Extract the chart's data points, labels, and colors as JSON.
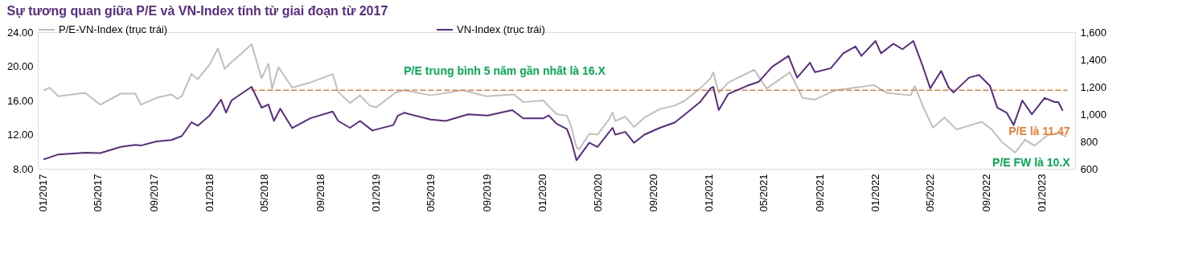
{
  "chart_data": {
    "type": "line",
    "title": "Sự tương quan giữa P/E và VN-Index tính từ giai đoạn từ 2017",
    "xlim": [
      "2016-12-20",
      "2023-03-15"
    ],
    "xticks": [
      {
        "value": "2017-01-01",
        "label": "01/2017"
      },
      {
        "value": "2017-05-01",
        "label": "05/2017"
      },
      {
        "value": "2017-09-01",
        "label": "09/2017"
      },
      {
        "value": "2018-01-01",
        "label": "01/2018"
      },
      {
        "value": "2018-05-01",
        "label": "05/2018"
      },
      {
        "value": "2018-09-01",
        "label": "09/2018"
      },
      {
        "value": "2019-01-01",
        "label": "01/2019"
      },
      {
        "value": "2019-05-01",
        "label": "05/2019"
      },
      {
        "value": "2019-09-01",
        "label": "09/2019"
      },
      {
        "value": "2020-01-01",
        "label": "01/2020"
      },
      {
        "value": "2020-05-01",
        "label": "05/2020"
      },
      {
        "value": "2020-09-01",
        "label": "09/2020"
      },
      {
        "value": "2021-01-01",
        "label": "01/2021"
      },
      {
        "value": "2021-05-01",
        "label": "05/2021"
      },
      {
        "value": "2021-09-01",
        "label": "09/2021"
      },
      {
        "value": "2022-01-01",
        "label": "01/2022"
      },
      {
        "value": "2022-05-01",
        "label": "05/2022"
      },
      {
        "value": "2022-09-01",
        "label": "09/2022"
      },
      {
        "value": "2023-01-01",
        "label": "01/2023"
      }
    ],
    "ylim": [
      8,
      24
    ],
    "yticks": [
      {
        "value": 8,
        "label": "8.00"
      },
      {
        "value": 12,
        "label": "12.00"
      },
      {
        "value": 16,
        "label": "16.00"
      },
      {
        "value": 20,
        "label": "20.00"
      },
      {
        "value": 24,
        "label": "24.00"
      }
    ],
    "y2lim": [
      600,
      1600
    ],
    "y2ticks": [
      {
        "value": 600,
        "label": "600"
      },
      {
        "value": 800,
        "label": "800"
      },
      {
        "value": 1000,
        "label": "1,000"
      },
      {
        "value": 1200,
        "label": "1,200"
      },
      {
        "value": 1400,
        "label": "1,400"
      },
      {
        "value": 1600,
        "label": "1,600"
      }
    ],
    "legend": "top",
    "series": [
      {
        "name": "P/E-VN-Index (trục trái)",
        "color": "#bfbfbf",
        "axis": "y",
        "x": [
          "2017-01-03",
          "2017-01-15",
          "2017-02-03",
          "2017-04-03",
          "2017-05-06",
          "2017-06-20",
          "2017-07-22",
          "2017-08-03",
          "2017-09-06",
          "2017-10-09",
          "2017-10-22",
          "2017-11-01",
          "2017-11-22",
          "2017-12-06",
          "2018-01-01",
          "2018-01-19",
          "2018-02-03",
          "2018-02-18",
          "2018-03-12",
          "2018-04-03",
          "2018-04-25",
          "2018-05-10",
          "2018-05-18",
          "2018-06-01",
          "2018-07-01",
          "2018-08-10",
          "2018-09-28",
          "2018-10-10",
          "2018-11-05",
          "2018-11-27",
          "2018-12-18",
          "2019-01-02",
          "2019-02-12",
          "2019-03-04",
          "2019-05-01",
          "2019-07-10",
          "2019-08-31",
          "2019-10-31",
          "2019-11-20",
          "2020-01-03",
          "2020-02-01",
          "2020-02-24",
          "2020-03-04",
          "2020-03-16",
          "2020-03-22",
          "2020-04-13",
          "2020-05-01",
          "2020-05-25",
          "2020-06-03",
          "2020-06-09",
          "2020-07-01",
          "2020-07-20",
          "2020-08-12",
          "2020-09-15",
          "2020-10-18",
          "2020-11-09",
          "2020-12-12",
          "2021-01-04",
          "2021-01-10",
          "2021-01-22",
          "2021-02-12",
          "2021-04-10",
          "2021-05-07",
          "2021-06-27",
          "2021-07-25",
          "2021-08-21",
          "2021-10-05",
          "2021-11-18",
          "2021-12-28",
          "2022-01-25",
          "2022-03-19",
          "2022-03-28",
          "2022-04-16",
          "2022-05-07",
          "2022-06-01",
          "2022-06-28",
          "2022-08-22",
          "2022-09-13",
          "2022-10-06",
          "2022-11-03",
          "2022-11-25",
          "2022-12-16",
          "2023-01-13",
          "2023-02-04",
          "2023-02-22"
        ],
        "values": [
          17.2,
          17.5,
          16.5,
          16.9,
          15.5,
          16.8,
          16.8,
          15.5,
          16.3,
          16.7,
          16.2,
          16.5,
          19.1,
          18.5,
          20.2,
          22.1,
          19.7,
          20.5,
          21.5,
          22.6,
          18.6,
          20.3,
          17.4,
          19.9,
          17.5,
          18.1,
          19.1,
          17.0,
          15.7,
          16.6,
          15.4,
          15.2,
          16.9,
          17.2,
          16.6,
          17.2,
          16.5,
          16.7,
          15.8,
          16.0,
          14.4,
          14.2,
          13.0,
          10.5,
          10.3,
          12.1,
          12.0,
          13.7,
          14.6,
          13.6,
          14.1,
          12.9,
          14.0,
          15.0,
          15.4,
          16.0,
          17.4,
          18.6,
          19.3,
          16.9,
          18.1,
          19.6,
          17.4,
          19.3,
          16.3,
          16.1,
          17.2,
          17.5,
          17.8,
          16.9,
          16.6,
          17.7,
          15.2,
          12.8,
          14.0,
          12.6,
          13.5,
          12.6,
          11.1,
          9.9,
          11.4,
          10.7,
          11.9,
          12.2,
          11.8
        ]
      },
      {
        "name": "VN-Index (trục trái)",
        "color": "#5b2a86",
        "axis": "y2",
        "x": [
          "2017-01-03",
          "2017-02-03",
          "2017-04-03",
          "2017-05-06",
          "2017-06-20",
          "2017-07-22",
          "2017-08-03",
          "2017-09-06",
          "2017-10-09",
          "2017-11-01",
          "2017-11-22",
          "2017-12-06",
          "2018-01-01",
          "2018-01-26",
          "2018-02-06",
          "2018-02-18",
          "2018-03-12",
          "2018-04-03",
          "2018-04-25",
          "2018-05-10",
          "2018-05-22",
          "2018-06-05",
          "2018-07-01",
          "2018-08-10",
          "2018-09-28",
          "2018-10-10",
          "2018-11-05",
          "2018-11-27",
          "2018-12-24",
          "2019-02-08",
          "2019-02-18",
          "2019-03-04",
          "2019-05-01",
          "2019-06-03",
          "2019-07-22",
          "2019-09-03",
          "2019-10-27",
          "2019-11-20",
          "2020-01-03",
          "2020-01-15",
          "2020-02-01",
          "2020-02-24",
          "2020-03-04",
          "2020-03-16",
          "2020-03-22",
          "2020-04-13",
          "2020-05-01",
          "2020-06-03",
          "2020-06-09",
          "2020-07-01",
          "2020-07-20",
          "2020-08-12",
          "2020-09-15",
          "2020-10-18",
          "2020-11-09",
          "2020-12-12",
          "2021-01-04",
          "2021-01-10",
          "2021-01-22",
          "2021-02-12",
          "2021-03-25",
          "2021-04-20",
          "2021-05-19",
          "2021-06-24",
          "2021-07-13",
          "2021-08-10",
          "2021-08-21",
          "2021-09-25",
          "2021-10-22",
          "2021-11-18",
          "2021-12-01",
          "2022-01-01",
          "2022-01-13",
          "2022-02-09",
          "2022-03-01",
          "2022-03-25",
          "2022-04-13",
          "2022-05-01",
          "2022-05-25",
          "2022-06-10",
          "2022-06-21",
          "2022-07-25",
          "2022-08-16",
          "2022-09-09",
          "2022-09-25",
          "2022-10-16",
          "2022-10-31",
          "2022-11-19",
          "2022-12-10",
          "2023-01-07",
          "2023-01-29",
          "2023-02-06",
          "2023-02-15"
        ],
        "values": [
          670,
          705,
          718,
          715,
          760,
          775,
          770,
          800,
          810,
          840,
          940,
          915,
          990,
          1106,
          1011,
          1100,
          1150,
          1200,
          1047,
          1070,
          950,
          1040,
          898,
          970,
          1019,
          950,
          900,
          950,
          880,
          920,
          989,
          1010,
          960,
          950,
          999,
          990,
          1029,
          969,
          969,
          990,
          930,
          890,
          810,
          662,
          690,
          790,
          760,
          900,
          850,
          870,
          790,
          850,
          900,
          940,
          999,
          1088,
          1189,
          1199,
          1029,
          1148,
          1207,
          1237,
          1346,
          1426,
          1267,
          1376,
          1307,
          1336,
          1445,
          1495,
          1426,
          1535,
          1445,
          1515,
          1475,
          1535,
          1366,
          1189,
          1316,
          1197,
          1158,
          1267,
          1287,
          1207,
          1048,
          1009,
          920,
          1100,
          999,
          1118,
          1088,
          1088,
          1029
        ]
      },
      {
        "type": "line",
        "color": "#ed7d31",
        "axis": "y",
        "line_style": "dashed",
        "x": [
          "2018-04-03",
          "2023-02-25"
        ],
        "values": [
          17.2,
          17.2
        ]
      }
    ],
    "annotations": [
      "P/E trung bình 5 năm gần nhất là 16.X",
      "P/E là 11.47",
      "P/E FW là 10.X"
    ]
  }
}
